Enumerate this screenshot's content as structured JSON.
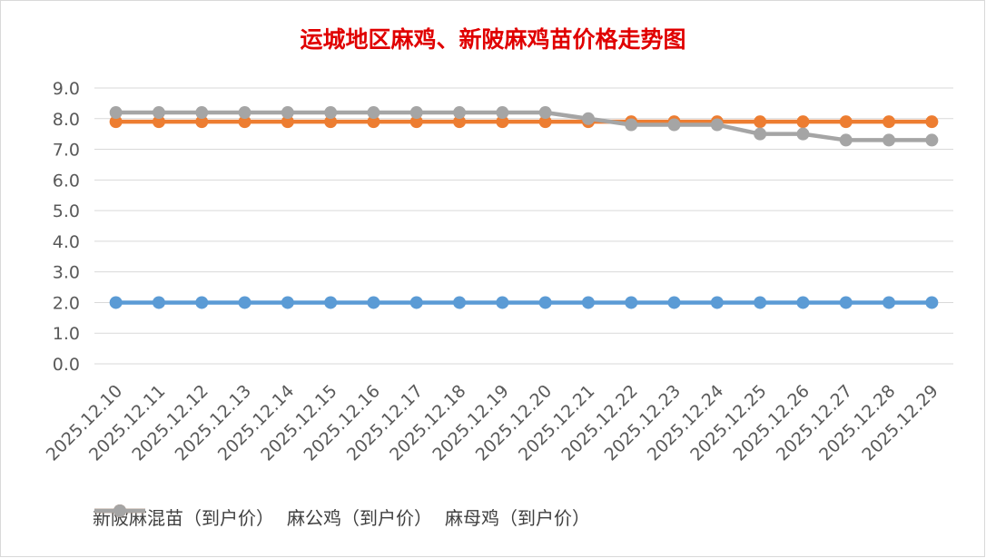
{
  "chart_data": {
    "type": "line",
    "title": "运城地区麻鸡、新陂麻鸡苗价格走势图",
    "xlabel": "",
    "ylabel": "",
    "ylim": [
      0,
      9
    ],
    "y_ticks": [
      "0.0",
      "1.0",
      "2.0",
      "3.0",
      "4.0",
      "5.0",
      "6.0",
      "7.0",
      "8.0",
      "9.0"
    ],
    "grid": true,
    "legend": "bottom",
    "categories": [
      "2025.12.10",
      "2025.12.11",
      "2025.12.12",
      "2025.12.13",
      "2025.12.14",
      "2025.12.15",
      "2025.12.16",
      "2025.12.17",
      "2025.12.18",
      "2025.12.19",
      "2025.12.20",
      "2025.12.21",
      "2025.12.22",
      "2025.12.23",
      "2025.12.24",
      "2025.12.25",
      "2025.12.26",
      "2025.12.27",
      "2025.12.28",
      "2025.12.29"
    ],
    "series": [
      {
        "name": "新陂麻混苗（到户价）",
        "color": "#5b9bd5",
        "values": [
          2.0,
          2.0,
          2.0,
          2.0,
          2.0,
          2.0,
          2.0,
          2.0,
          2.0,
          2.0,
          2.0,
          2.0,
          2.0,
          2.0,
          2.0,
          2.0,
          2.0,
          2.0,
          2.0,
          2.0
        ]
      },
      {
        "name": "麻公鸡（到户价）",
        "color": "#ed7d31",
        "values": [
          7.9,
          7.9,
          7.9,
          7.9,
          7.9,
          7.9,
          7.9,
          7.9,
          7.9,
          7.9,
          7.9,
          7.9,
          7.9,
          7.9,
          7.9,
          7.9,
          7.9,
          7.9,
          7.9,
          7.9
        ]
      },
      {
        "name": "麻母鸡（到户价）",
        "color": "#a5a5a5",
        "values": [
          8.2,
          8.2,
          8.2,
          8.2,
          8.2,
          8.2,
          8.2,
          8.2,
          8.2,
          8.2,
          8.2,
          8.0,
          7.8,
          7.8,
          7.8,
          7.5,
          7.5,
          7.3,
          7.3,
          7.3
        ]
      }
    ]
  }
}
